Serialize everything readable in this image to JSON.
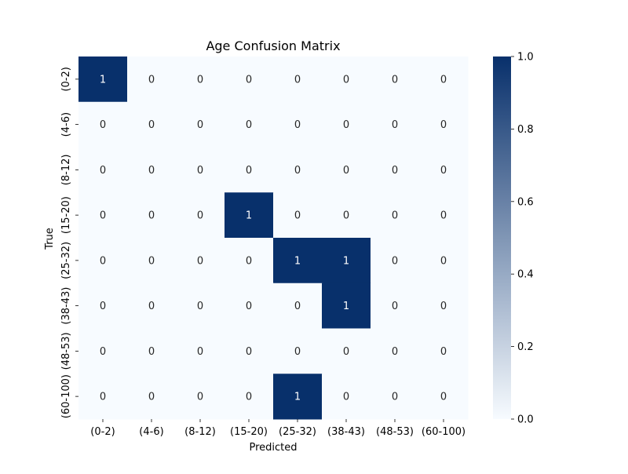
{
  "chart_data": {
    "type": "heatmap",
    "title": "Age Confusion Matrix",
    "xlabel": "Predicted",
    "ylabel": "True",
    "x_categories": [
      "(0-2)",
      "(4-6)",
      "(8-12)",
      "(15-20)",
      "(25-32)",
      "(38-43)",
      "(48-53)",
      "(60-100)"
    ],
    "y_categories": [
      "(0-2)",
      "(4-6)",
      "(8-12)",
      "(15-20)",
      "(25-32)",
      "(38-43)",
      "(48-53)",
      "(60-100)"
    ],
    "values": [
      [
        1,
        0,
        0,
        0,
        0,
        0,
        0,
        0
      ],
      [
        0,
        0,
        0,
        0,
        0,
        0,
        0,
        0
      ],
      [
        0,
        0,
        0,
        0,
        0,
        0,
        0,
        0
      ],
      [
        0,
        0,
        0,
        1,
        0,
        0,
        0,
        0
      ],
      [
        0,
        0,
        0,
        0,
        1,
        1,
        0,
        0
      ],
      [
        0,
        0,
        0,
        0,
        0,
        1,
        0,
        0
      ],
      [
        0,
        0,
        0,
        0,
        0,
        0,
        0,
        0
      ],
      [
        0,
        0,
        0,
        0,
        1,
        0,
        0,
        0
      ]
    ],
    "colorbar": {
      "min": 0.0,
      "max": 1.0,
      "ticks": [
        "0.0",
        "0.2",
        "0.4",
        "0.6",
        "0.8",
        "1.0"
      ],
      "colormap": "Blues",
      "low_color": "#f7fbff",
      "high_color": "#08306b"
    }
  }
}
